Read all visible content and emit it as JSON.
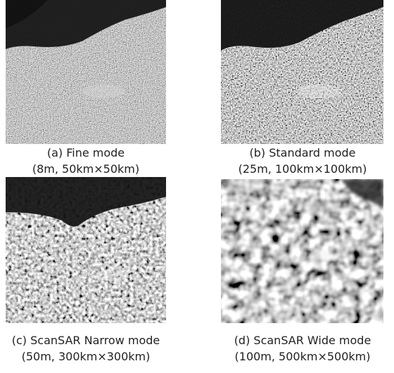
{
  "panels": [
    {
      "label": "(a) Fine mode",
      "detail": "(8m, 50km×50km)"
    },
    {
      "label": "(b) Standard mode",
      "detail": "(25m, 100km×100km)"
    },
    {
      "label": "(c) ScanSAR Narrow mode",
      "detail": "(50m, 300km×300km)"
    },
    {
      "label": "(d) ScanSAR Wide mode",
      "detail": "(100m, 500km×500km)"
    }
  ]
}
